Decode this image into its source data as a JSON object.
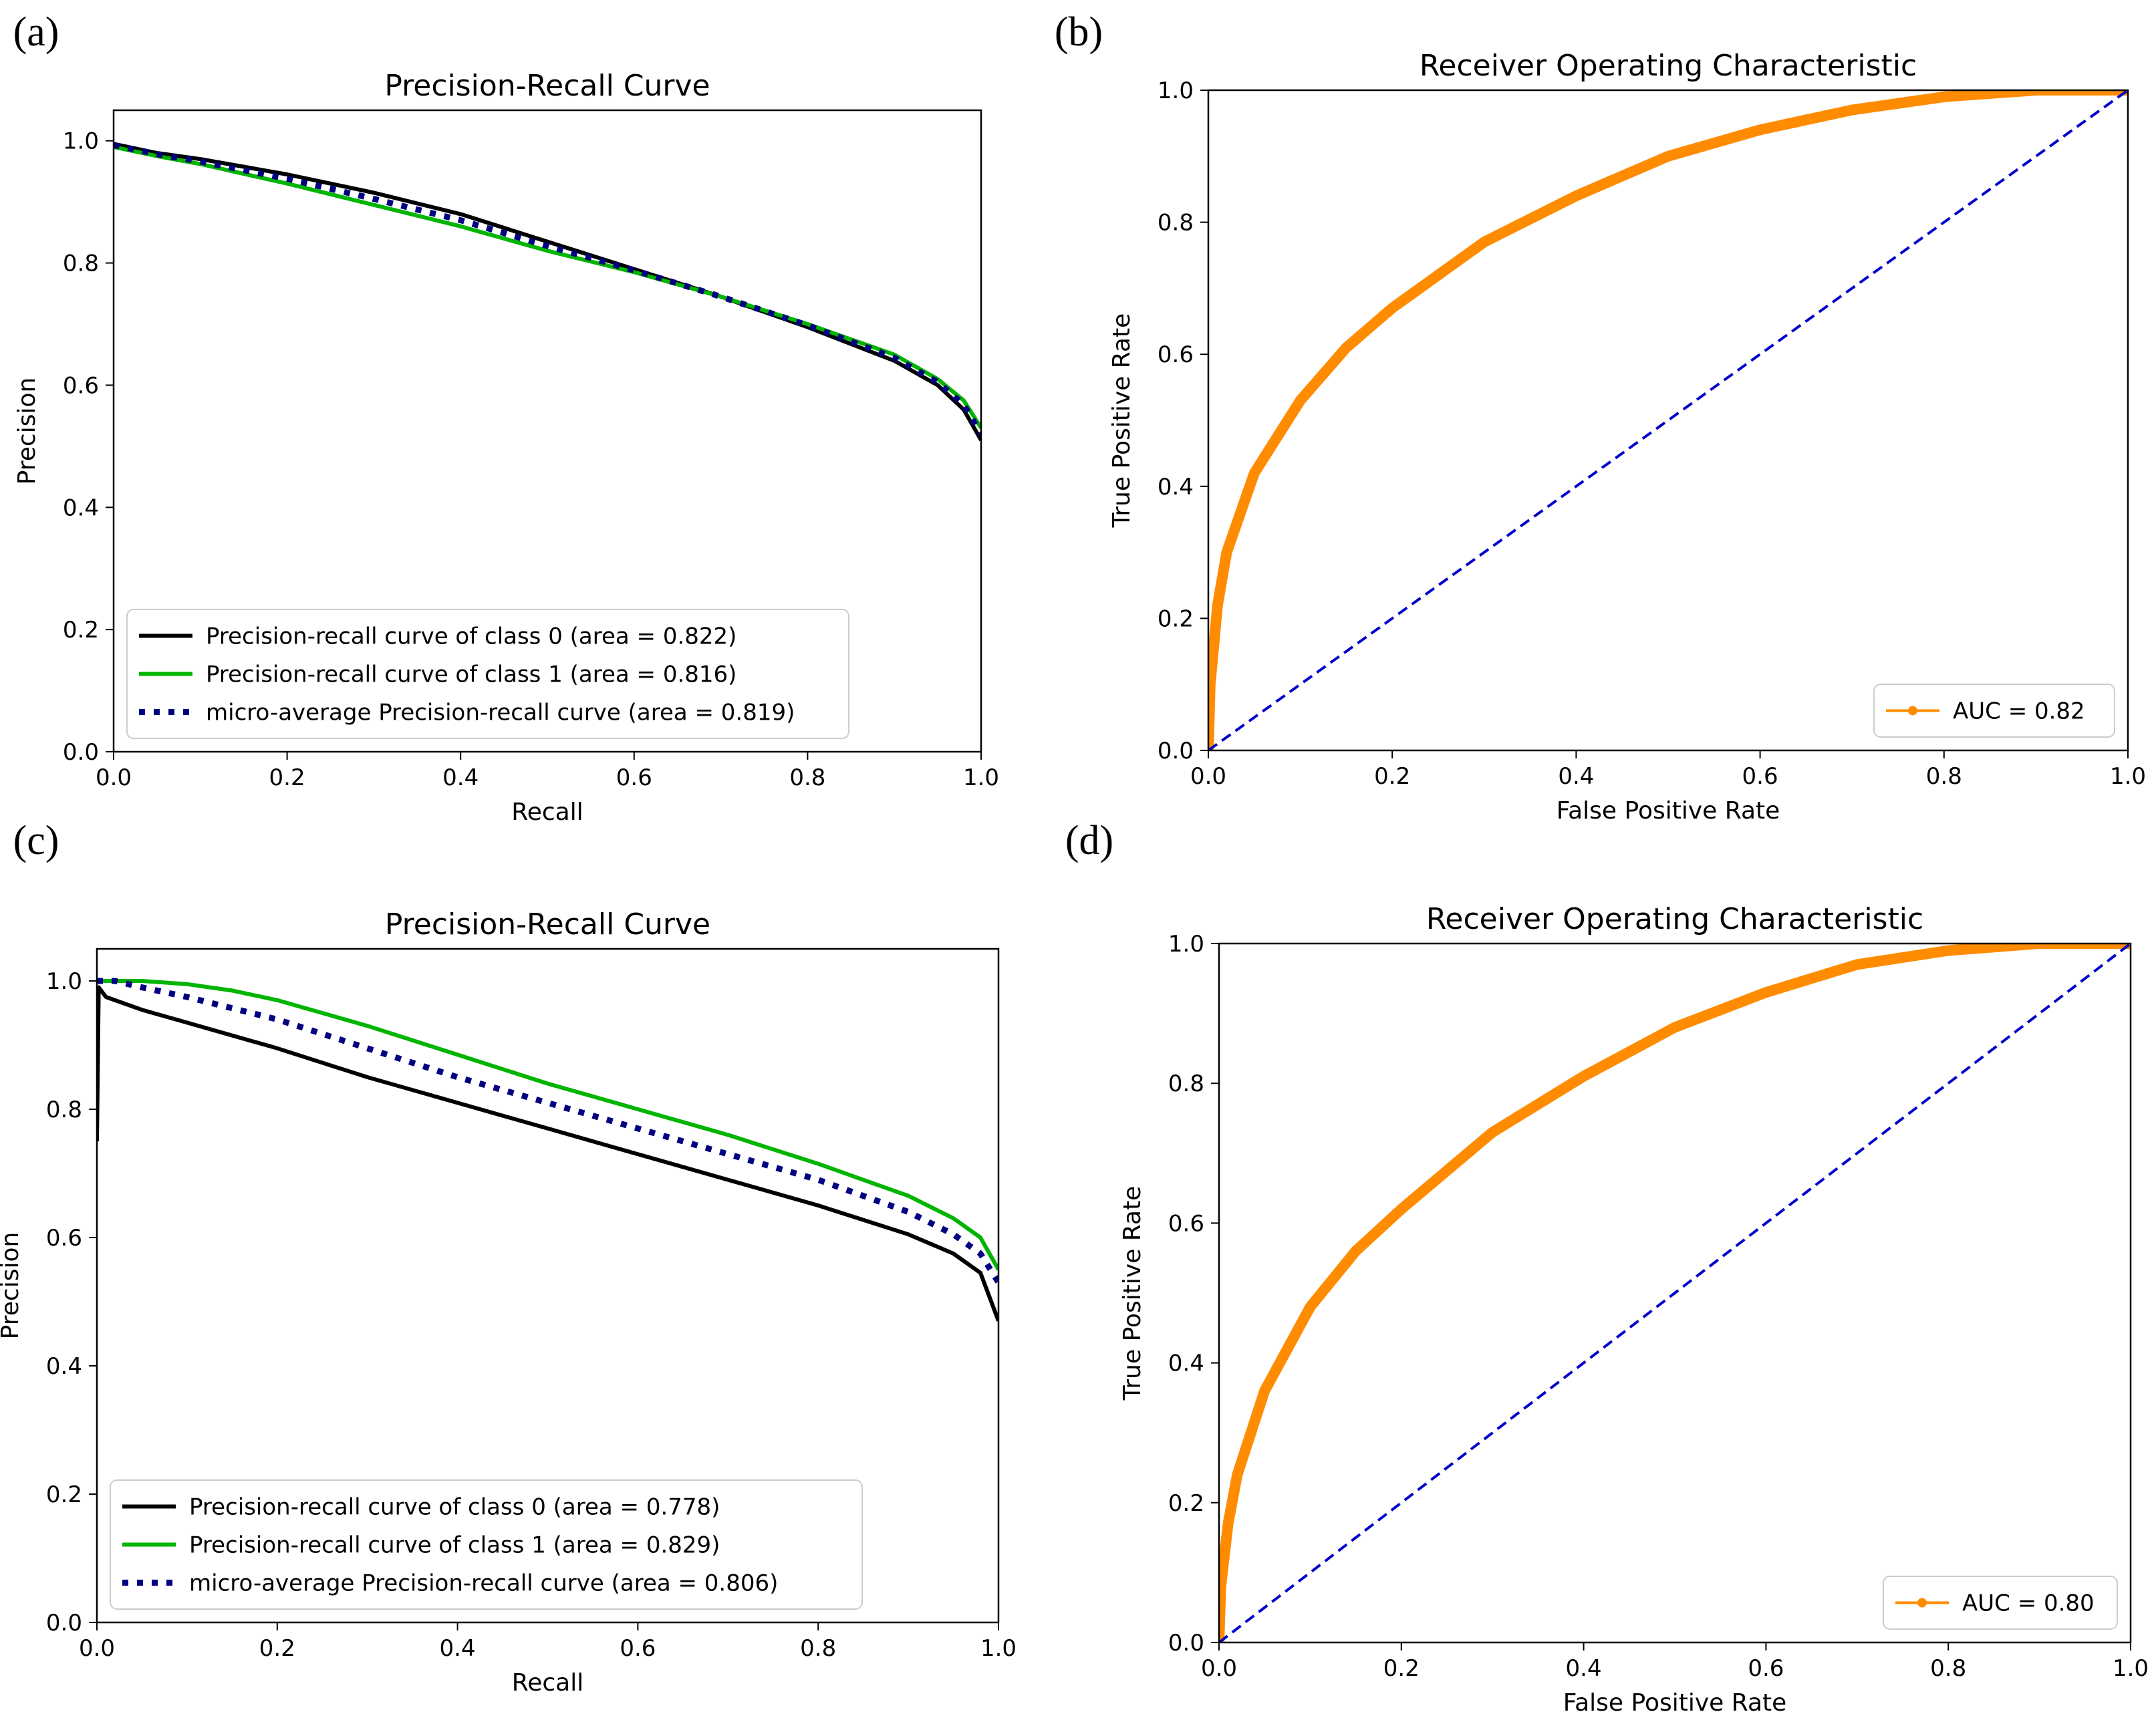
{
  "chart_data": [
    {
      "panel": "(a)",
      "type": "line",
      "title": "Precision-Recall Curve",
      "xlabel": "Recall",
      "ylabel": "Precision",
      "xlim": [
        0,
        1
      ],
      "ylim": [
        0,
        1.05
      ],
      "xticks": [
        "0.0",
        "0.2",
        "0.4",
        "0.6",
        "0.8",
        "1.0"
      ],
      "yticks": [
        "0.0",
        "0.2",
        "0.4",
        "0.6",
        "0.8",
        "1.0"
      ],
      "legend_position": "lower-left",
      "grid": false,
      "series": [
        {
          "name": "Precision-recall curve of class 0 (area = 0.822)",
          "color": "#000000",
          "style": "solid",
          "x": [
            0,
            0.05,
            0.1,
            0.2,
            0.3,
            0.4,
            0.5,
            0.6,
            0.7,
            0.8,
            0.9,
            0.95,
            0.98,
            1.0
          ],
          "y": [
            0.995,
            0.98,
            0.97,
            0.945,
            0.915,
            0.88,
            0.835,
            0.79,
            0.745,
            0.695,
            0.64,
            0.6,
            0.56,
            0.51
          ]
        },
        {
          "name": "Precision-recall curve of class 1 (area = 0.816)",
          "color": "#00b400",
          "style": "solid",
          "x": [
            0,
            0.05,
            0.1,
            0.2,
            0.3,
            0.4,
            0.5,
            0.6,
            0.7,
            0.8,
            0.9,
            0.95,
            0.98,
            1.0
          ],
          "y": [
            0.99,
            0.975,
            0.962,
            0.93,
            0.895,
            0.86,
            0.82,
            0.785,
            0.745,
            0.7,
            0.65,
            0.61,
            0.575,
            0.53
          ]
        },
        {
          "name": "micro-average Precision-recall curve (area = 0.819)",
          "color": "#000080",
          "style": "dotted",
          "x": [
            0,
            0.05,
            0.1,
            0.2,
            0.3,
            0.4,
            0.5,
            0.6,
            0.7,
            0.8,
            0.9,
            0.95,
            0.98,
            1.0
          ],
          "y": [
            0.993,
            0.978,
            0.966,
            0.938,
            0.905,
            0.87,
            0.828,
            0.788,
            0.745,
            0.698,
            0.645,
            0.605,
            0.568,
            0.52
          ]
        }
      ]
    },
    {
      "panel": "(b)",
      "type": "line",
      "title": "Receiver Operating Characteristic",
      "xlabel": "False Positive Rate",
      "ylabel": "True Positive Rate",
      "xlim": [
        0,
        1
      ],
      "ylim": [
        0,
        1
      ],
      "xticks": [
        "0.0",
        "0.2",
        "0.4",
        "0.6",
        "0.8",
        "1.0"
      ],
      "yticks": [
        "0.0",
        "0.2",
        "0.4",
        "0.6",
        "0.8",
        "1.0"
      ],
      "legend_position": "lower-right",
      "grid": false,
      "series": [
        {
          "name": "AUC = 0.82",
          "color": "#ff8c00",
          "style": "solid-marker",
          "x": [
            0,
            0.002,
            0.01,
            0.02,
            0.05,
            0.1,
            0.15,
            0.2,
            0.3,
            0.4,
            0.5,
            0.6,
            0.7,
            0.8,
            0.9,
            1.0
          ],
          "y": [
            0,
            0.1,
            0.22,
            0.3,
            0.42,
            0.53,
            0.61,
            0.67,
            0.77,
            0.84,
            0.9,
            0.94,
            0.97,
            0.99,
            1.0,
            1.0
          ]
        },
        {
          "name": "",
          "color": "#0000cc",
          "style": "dashed",
          "x": [
            0,
            1
          ],
          "y": [
            0,
            1
          ]
        }
      ]
    },
    {
      "panel": "(c)",
      "type": "line",
      "title": "Precision-Recall Curve",
      "xlabel": "Recall",
      "ylabel": "Precision",
      "xlim": [
        0,
        1
      ],
      "ylim": [
        0,
        1.05
      ],
      "xticks": [
        "0.0",
        "0.2",
        "0.4",
        "0.6",
        "0.8",
        "1.0"
      ],
      "yticks": [
        "0.0",
        "0.2",
        "0.4",
        "0.6",
        "0.8",
        "1.0"
      ],
      "legend_position": "lower-left",
      "grid": false,
      "series": [
        {
          "name": "Precision-recall curve of class 0 (area = 0.778)",
          "color": "#000000",
          "style": "solid",
          "x": [
            0,
            0.002,
            0.01,
            0.05,
            0.1,
            0.2,
            0.3,
            0.4,
            0.5,
            0.6,
            0.7,
            0.8,
            0.9,
            0.95,
            0.98,
            1.0
          ],
          "y": [
            0.75,
            0.99,
            0.975,
            0.955,
            0.935,
            0.895,
            0.85,
            0.81,
            0.77,
            0.73,
            0.69,
            0.65,
            0.605,
            0.575,
            0.545,
            0.47
          ]
        },
        {
          "name": "Precision-recall curve of class 1 (area = 0.829)",
          "color": "#00b400",
          "style": "solid",
          "x": [
            0,
            0.05,
            0.1,
            0.15,
            0.2,
            0.3,
            0.4,
            0.5,
            0.6,
            0.7,
            0.8,
            0.9,
            0.95,
            0.98,
            1.0
          ],
          "y": [
            1.0,
            1.0,
            0.995,
            0.985,
            0.97,
            0.93,
            0.885,
            0.84,
            0.8,
            0.76,
            0.715,
            0.665,
            0.63,
            0.6,
            0.55
          ]
        },
        {
          "name": "micro-average Precision-recall curve (area = 0.806)",
          "color": "#000080",
          "style": "dotted",
          "x": [
            0,
            0.02,
            0.05,
            0.1,
            0.2,
            0.3,
            0.4,
            0.5,
            0.6,
            0.7,
            0.8,
            0.9,
            0.95,
            0.98,
            1.0
          ],
          "y": [
            1.0,
            1.0,
            0.99,
            0.975,
            0.94,
            0.895,
            0.85,
            0.81,
            0.77,
            0.73,
            0.69,
            0.64,
            0.605,
            0.575,
            0.53
          ]
        }
      ]
    },
    {
      "panel": "(d)",
      "type": "line",
      "title": "Receiver Operating Characteristic",
      "xlabel": "False Positive Rate",
      "ylabel": "True Positive Rate",
      "xlim": [
        0,
        1
      ],
      "ylim": [
        0,
        1
      ],
      "xticks": [
        "0.0",
        "0.2",
        "0.4",
        "0.6",
        "0.8",
        "1.0"
      ],
      "yticks": [
        "0.0",
        "0.2",
        "0.4",
        "0.6",
        "0.8",
        "1.0"
      ],
      "legend_position": "lower-right",
      "grid": false,
      "series": [
        {
          "name": "AUC = 0.80",
          "color": "#ff8c00",
          "style": "solid-marker",
          "x": [
            0,
            0.002,
            0.01,
            0.02,
            0.05,
            0.1,
            0.15,
            0.2,
            0.3,
            0.4,
            0.5,
            0.6,
            0.7,
            0.8,
            0.9,
            1.0
          ],
          "y": [
            0,
            0.08,
            0.17,
            0.24,
            0.36,
            0.48,
            0.56,
            0.62,
            0.73,
            0.81,
            0.88,
            0.93,
            0.97,
            0.99,
            1.0,
            1.0
          ]
        },
        {
          "name": "",
          "color": "#0000cc",
          "style": "dashed",
          "x": [
            0,
            1
          ],
          "y": [
            0,
            1
          ]
        }
      ]
    }
  ]
}
